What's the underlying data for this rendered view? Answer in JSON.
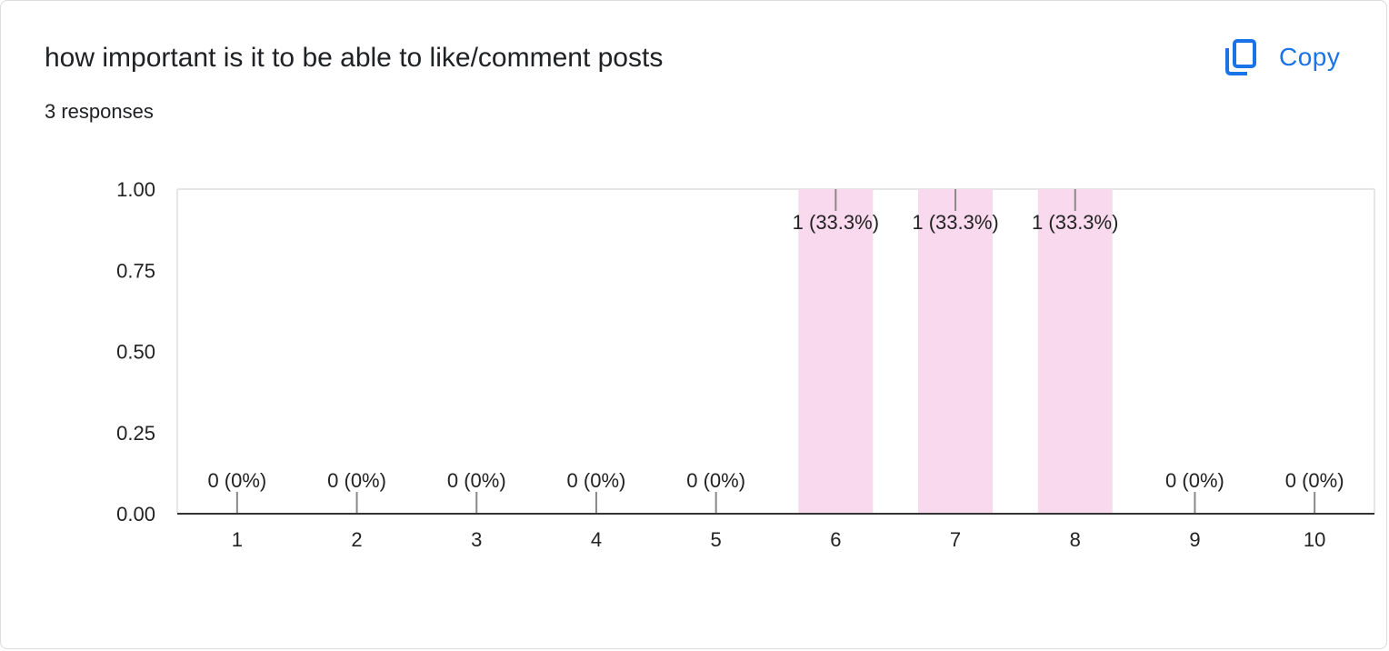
{
  "header": {
    "title": "how important is it to be able to like/comment posts",
    "responses": "3 responses",
    "copy_label": "Copy",
    "copy_icon": "copy-icon"
  },
  "colors": {
    "bar": "#f8d9ee",
    "accent": "#1a73e8",
    "axis": "#333333",
    "gridline": "#e6e6e6",
    "text": "#202124"
  },
  "chart_data": {
    "type": "bar",
    "categories": [
      "1",
      "2",
      "3",
      "4",
      "5",
      "6",
      "7",
      "8",
      "9",
      "10"
    ],
    "values": [
      0,
      0,
      0,
      0,
      0,
      1,
      1,
      1,
      0,
      0
    ],
    "data_labels": [
      "0 (0%)",
      "0 (0%)",
      "0 (0%)",
      "0 (0%)",
      "0 (0%)",
      "1 (33.3%)",
      "1 (33.3%)",
      "1 (33.3%)",
      "0 (0%)",
      "0 (0%)"
    ],
    "y_ticks": [
      "0.00",
      "0.25",
      "0.50",
      "0.75",
      "1.00"
    ],
    "ylim": [
      0,
      1
    ],
    "title": "",
    "xlabel": "",
    "ylabel": ""
  }
}
